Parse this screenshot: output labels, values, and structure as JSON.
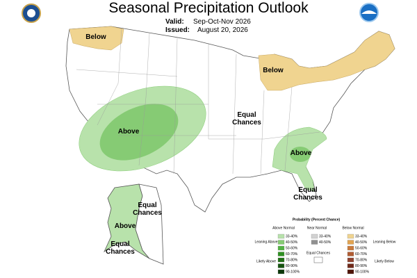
{
  "title": "Seasonal Precipitation Outlook",
  "valid": {
    "label": "Valid:",
    "value": "Sep-Oct-Nov 2026"
  },
  "issued": {
    "label": "Issued:",
    "value": "August 20, 2026"
  },
  "map_labels": [
    "Below",
    "Below",
    "Above",
    "Equal Chances",
    "Above",
    "Equal Chances",
    "Equal Chances",
    "Above",
    "Equal Chances"
  ],
  "legend": {
    "title": "Probability (Percent Chance)",
    "columns": [
      {
        "heading": "Above Normal",
        "entries": [
          {
            "label": "33-40%",
            "color": "#b8e2ab"
          },
          {
            "label": "40-50%",
            "color": "#86cb74"
          },
          {
            "label": "50-60%",
            "color": "#52b243"
          },
          {
            "label": "60-70%",
            "color": "#2f8f22"
          },
          {
            "label": "70-80%",
            "color": "#217016"
          },
          {
            "label": "80-90%",
            "color": "#165410"
          },
          {
            "label": "90-100%",
            "color": "#0c380a"
          }
        ]
      },
      {
        "heading": "Near Normal",
        "entries": [
          {
            "label": "33-40%",
            "color": "#d2d2d2"
          },
          {
            "label": "40-50%",
            "color": "#909090"
          }
        ]
      },
      {
        "heading": "Below Normal",
        "entries": [
          {
            "label": "33-40%",
            "color": "#f0d490"
          },
          {
            "label": "40-50%",
            "color": "#e2a452"
          },
          {
            "label": "50-60%",
            "color": "#c97a3c"
          },
          {
            "label": "60-70%",
            "color": "#b05c33"
          },
          {
            "label": "70-80%",
            "color": "#8f4230"
          },
          {
            "label": "80-90%",
            "color": "#702a1a"
          },
          {
            "label": "90-100%",
            "color": "#4f1508"
          }
        ]
      }
    ],
    "equal_chances": "Equal Chances",
    "side_labels": [
      "Leaning Above",
      "Likely Above",
      "Leaning Below",
      "Likely Below"
    ]
  }
}
